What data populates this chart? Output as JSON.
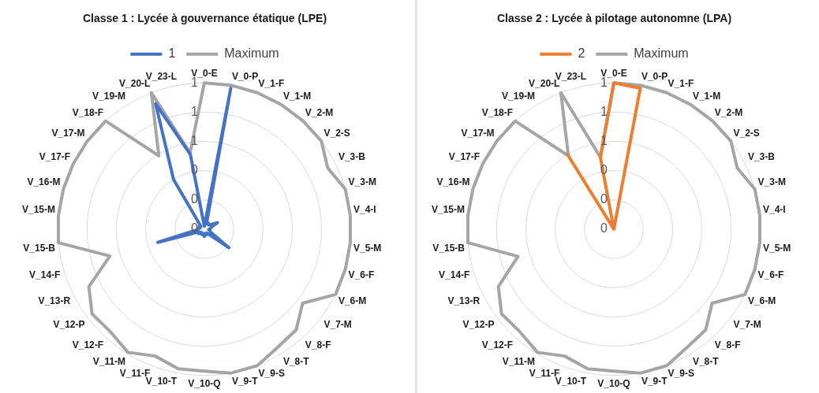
{
  "chart_data": [
    {
      "type": "radar",
      "title": "Classe 1 : Lycée à gouvernance étatique (LPE)",
      "categories": [
        "V_0-E",
        "V_0-P",
        "V_1-F",
        "V_1-M",
        "V_2-M",
        "V_2-S",
        "V_3-B",
        "V_3-M",
        "V_4-I",
        "V_5-M",
        "V_6-F",
        "V_6-M",
        "V_7-M",
        "V_8-F",
        "V_8-T",
        "V_9-S",
        "V_9-T",
        "V_10-Q",
        "V_10-T",
        "V_11-F",
        "V_11-M",
        "V_12-F",
        "V_12-P",
        "V_13-R",
        "V_14-F",
        "V_15-B",
        "V_15-M",
        "V_16-M",
        "V_17-F",
        "V_17-M",
        "V_18-F",
        "V_19-M",
        "V_20-L",
        "V_23-L"
      ],
      "series": [
        {
          "name": "1",
          "color": "#4472c4",
          "values": [
            0.02,
            0.98,
            0.04,
            0.05,
            0.04,
            0.05,
            0.1,
            0.05,
            0.04,
            0.03,
            0.04,
            0.05,
            0.21,
            0.05,
            0.03,
            0.04,
            0.03,
            0.05,
            0.04,
            0.03,
            0.04,
            0.03,
            0.05,
            0.04,
            0.33,
            0.05,
            0.04,
            0.03,
            0.04,
            0.03,
            0.05,
            0.4,
            0.92,
            0.52
          ]
        },
        {
          "name": "Maximum",
          "color": "#a5a5a5",
          "values": [
            1,
            1,
            1,
            1,
            1,
            1,
            0.94,
            1,
            1,
            1,
            1,
            1,
            0.84,
            0.93,
            0.95,
            1,
            1,
            0.97,
            0.97,
            0.93,
            0.99,
            0.95,
            0.96,
            0.88,
            0.67,
            1,
            1,
            1,
            1,
            1,
            1,
            0.59,
            1,
            0.53
          ]
        }
      ],
      "ylim": [
        0,
        1
      ],
      "yticks": [
        {
          "value": 0,
          "label": "0"
        },
        {
          "value": 0.2,
          "label": "0"
        },
        {
          "value": 0.4,
          "label": "0"
        },
        {
          "value": 0.6,
          "label": "1"
        },
        {
          "value": 0.8,
          "label": "1"
        },
        {
          "value": 1,
          "label": "1"
        }
      ],
      "grid": true,
      "legend": "top",
      "marker": "none"
    },
    {
      "type": "radar",
      "title": "Classe 2 : Lycée à pilotage autonomne (LPA)",
      "categories": [
        "V_0-E",
        "V_0-P",
        "V_1-F",
        "V_1-M",
        "V_2-M",
        "V_2-S",
        "V_3-B",
        "V_3-M",
        "V_4-I",
        "V_5-M",
        "V_6-F",
        "V_6-M",
        "V_7-M",
        "V_8-F",
        "V_8-T",
        "V_9-S",
        "V_9-T",
        "V_10-Q",
        "V_10-T",
        "V_11-F",
        "V_11-M",
        "V_12-F",
        "V_12-P",
        "V_13-R",
        "V_14-F",
        "V_15-B",
        "V_15-M",
        "V_16-M",
        "V_17-F",
        "V_17-M",
        "V_18-F",
        "V_19-M",
        "V_20-L",
        "V_23-L"
      ],
      "series": [
        {
          "name": "2",
          "color": "#ed7d31",
          "values": [
            1,
            0.98,
            0,
            0,
            0,
            0,
            0,
            0,
            0,
            0,
            0,
            0,
            0,
            0,
            0,
            0,
            0,
            0,
            0,
            0,
            0,
            0,
            0,
            0,
            0,
            0,
            0,
            0,
            0,
            0,
            0,
            0.6,
            0,
            0.5
          ]
        },
        {
          "name": "Maximum",
          "color": "#a5a5a5",
          "values": [
            1,
            1,
            1,
            1,
            1,
            1,
            0.94,
            1,
            1,
            1,
            1,
            1,
            0.84,
            0.93,
            0.95,
            1,
            1,
            0.97,
            0.97,
            0.93,
            0.99,
            0.95,
            0.96,
            0.88,
            0.68,
            1,
            1,
            1,
            1,
            1,
            1,
            0.59,
            1,
            0.5
          ]
        }
      ],
      "ylim": [
        0,
        1
      ],
      "yticks": [
        {
          "value": 0,
          "label": "0"
        },
        {
          "value": 0.2,
          "label": "0"
        },
        {
          "value": 0.4,
          "label": "0"
        },
        {
          "value": 0.6,
          "label": "1"
        },
        {
          "value": 0.8,
          "label": "1"
        },
        {
          "value": 1,
          "label": "1"
        }
      ],
      "grid": true,
      "legend": "top",
      "marker": "none"
    }
  ]
}
